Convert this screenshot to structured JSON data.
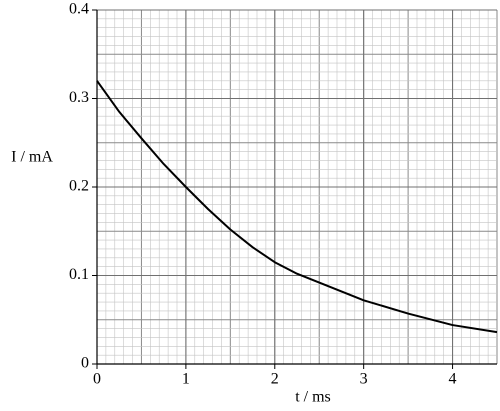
{
  "chart_data": {
    "type": "line",
    "x_label": "t / ms",
    "y_label": "I / mA",
    "x": [
      0,
      0.25,
      0.5,
      0.75,
      1,
      1.25,
      1.5,
      1.75,
      2,
      2.25,
      2.5,
      3,
      3.5,
      4,
      4.5
    ],
    "series": [
      {
        "name": "I",
        "color": "#000000",
        "values": [
          0.32,
          0.285,
          0.255,
          0.226,
          0.2,
          0.175,
          0.152,
          0.132,
          0.115,
          0.102,
          0.092,
          0.072,
          0.057,
          0.044,
          0.036
        ]
      }
    ],
    "xlim": [
      0,
      4.5
    ],
    "ylim": [
      0,
      0.4
    ],
    "xticks": [
      0,
      1,
      2,
      3,
      4
    ],
    "yticks": [
      0,
      0.1,
      0.2,
      0.3,
      0.4
    ],
    "grid": true
  }
}
